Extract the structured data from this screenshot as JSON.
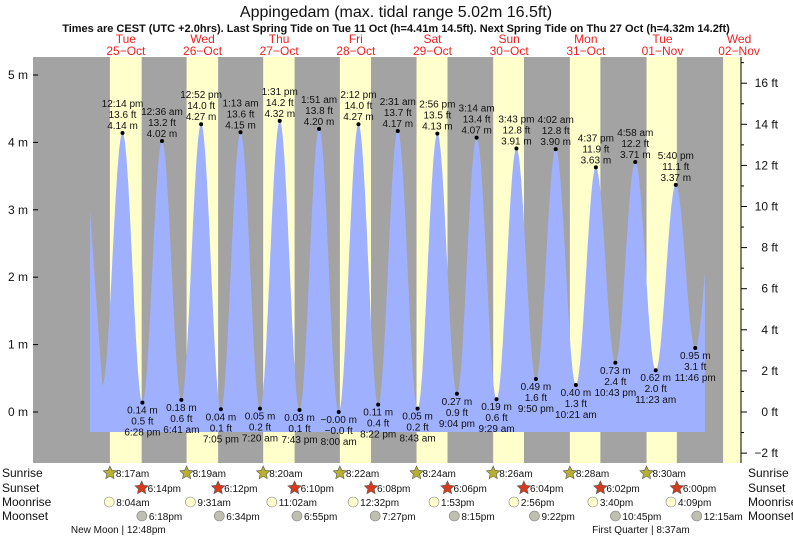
{
  "title": "Appingedam (max. tidal range 5.02m 16.5ft)",
  "subtitle": "Times are CEST (UTC +2.0hrs). Last Spring Tide on Tue 11 Oct (h=4.41m 14.5ft). Next Spring Tide on Thu 27 Oct (h=4.32m 14.2ft)",
  "colors": {
    "night": "#a3a3a3",
    "day": "#ffffcc",
    "water": "#9fb0ff",
    "day_label": "#ee2222",
    "sunrise": "#b8b030",
    "sunset": "#d83a1c",
    "moonrise": "#ffffcc",
    "moonset": "#c0c0b0"
  },
  "chart_data": {
    "type": "area",
    "x_unit": "hours from 25-Oct 00:00 CEST",
    "ylabel_left": "m",
    "ylabel_right": "ft",
    "ylim_m": [
      -0.8,
      5.3
    ],
    "left_ticks": [
      "0 m",
      "1 m",
      "2 m",
      "3 m",
      "4 m",
      "5 m"
    ],
    "right_ticks": [
      "−2 ft",
      "0 ft",
      "2 ft",
      "4 ft",
      "6 ft",
      "8 ft",
      "10 ft",
      "12 ft",
      "14 ft",
      "16 ft"
    ],
    "days": [
      {
        "dow": "Tue",
        "date": "25−Oct",
        "sunrise": "8:17am",
        "sunset": "6:14pm",
        "sr_h": 8.28,
        "ss_h": 18.23,
        "moonrise": "8:04am",
        "mr_h": 8.07,
        "moonset": "6:18pm",
        "ms_h": 18.3
      },
      {
        "dow": "Wed",
        "date": "26−Oct",
        "sunrise": "8:19am",
        "sunset": "6:12pm",
        "sr_h": 32.32,
        "ss_h": 42.2,
        "moonrise": "9:31am",
        "mr_h": 33.52,
        "moonset": "6:34pm",
        "ms_h": 42.57
      },
      {
        "dow": "Thu",
        "date": "27−Oct",
        "sunrise": "8:20am",
        "sunset": "6:10pm",
        "sr_h": 56.33,
        "ss_h": 66.17,
        "moonrise": "11:02am",
        "mr_h": 59.03,
        "moonset": "6:55pm",
        "ms_h": 66.92
      },
      {
        "dow": "Fri",
        "date": "28−Oct",
        "sunrise": "8:22am",
        "sunset": "6:08pm",
        "sr_h": 80.37,
        "ss_h": 90.13,
        "moonrise": "12:32pm",
        "mr_h": 84.53,
        "moonset": "7:27pm",
        "ms_h": 91.45
      },
      {
        "dow": "Sat",
        "date": "29−Oct",
        "sunrise": "8:24am",
        "sunset": "6:06pm",
        "sr_h": 104.4,
        "ss_h": 114.1,
        "moonrise": "1:53pm",
        "mr_h": 109.88,
        "moonset": "8:15pm",
        "ms_h": 116.25
      },
      {
        "dow": "Sun",
        "date": "30−Oct",
        "sunrise": "8:26am",
        "sunset": "6:04pm",
        "sr_h": 128.43,
        "ss_h": 138.07,
        "moonrise": "2:56pm",
        "mr_h": 134.93,
        "moonset": "9:22pm",
        "ms_h": 141.37
      },
      {
        "dow": "Mon",
        "date": "31−Oct",
        "sunrise": "8:28am",
        "sunset": "6:02pm",
        "sr_h": 152.47,
        "ss_h": 162.03,
        "moonrise": "3:40pm",
        "mr_h": 159.67,
        "moonset": "10:45pm",
        "ms_h": 166.75
      },
      {
        "dow": "Tue",
        "date": "01−Nov",
        "sunrise": "8:30am",
        "sunset": "6:00pm",
        "sr_h": 176.5,
        "ss_h": 186.0,
        "moonrise": "4:09pm",
        "mr_h": 184.15,
        "moonset": "12:15am",
        "ms_h": 192.25
      },
      {
        "dow": "Wed",
        "date": "02−Nov",
        "sr_h": 200.5
      }
    ],
    "row_labels": [
      "Sunrise",
      "Sunset",
      "Moonrise",
      "Moonset"
    ],
    "moon_phases": [
      {
        "text": "New Moon | 12:48pm",
        "h": 12.8
      },
      {
        "text": "First Quarter | 8:37am",
        "h": 176.62
      }
    ],
    "curve_start": {
      "h": 2,
      "m": 3.0
    },
    "curve_end": {
      "h": 194.8
    },
    "virtual_extremes": [
      {
        "h": 5.9,
        "m": 0.4
      },
      {
        "h": 198,
        "m": 3.3
      }
    ],
    "extremes": [
      {
        "type": "H",
        "time": "12:14 pm",
        "ft": "13.6 ft",
        "mm": "4.14 m",
        "h": 12.23,
        "m": 4.14
      },
      {
        "type": "L",
        "time": "6:28 pm",
        "ft": "0.5 ft",
        "mm": "0.14 m",
        "h": 18.47,
        "m": 0.14
      },
      {
        "type": "H",
        "time": "12:36 am",
        "ft": "13.2 ft",
        "mm": "4.02 m",
        "h": 24.6,
        "m": 4.02
      },
      {
        "type": "L",
        "time": "6:41 am",
        "ft": "0.6 ft",
        "mm": "0.18 m",
        "h": 30.68,
        "m": 0.18
      },
      {
        "type": "H",
        "time": "12:52 pm",
        "ft": "14.0 ft",
        "mm": "4.27 m",
        "h": 36.87,
        "m": 4.27
      },
      {
        "type": "L",
        "time": "7:05 pm",
        "ft": "0.1 ft",
        "mm": "0.04 m",
        "h": 43.08,
        "m": 0.04
      },
      {
        "type": "H",
        "time": "1:13 am",
        "ft": "13.6 ft",
        "mm": "4.15 m",
        "h": 49.22,
        "m": 4.15
      },
      {
        "type": "L",
        "time": "7:20 am",
        "ft": "0.2 ft",
        "mm": "0.05 m",
        "h": 55.33,
        "m": 0.05
      },
      {
        "type": "H",
        "time": "1:31 pm",
        "ft": "14.2 ft",
        "mm": "4.32 m",
        "h": 61.52,
        "m": 4.32
      },
      {
        "type": "L",
        "time": "7:43 pm",
        "ft": "0.1 ft",
        "mm": "0.03 m",
        "h": 67.72,
        "m": 0.03
      },
      {
        "type": "H",
        "time": "1:51 am",
        "ft": "13.8 ft",
        "mm": "4.20 m",
        "h": 73.85,
        "m": 4.2
      },
      {
        "type": "L",
        "time": "8:00 am",
        "ft": "−0.0 ft",
        "mm": "−0.00 m",
        "h": 80.0,
        "m": 0.0
      },
      {
        "type": "H",
        "time": "2:12 pm",
        "ft": "14.0 ft",
        "mm": "4.27 m",
        "h": 86.2,
        "m": 4.27
      },
      {
        "type": "L",
        "time": "8:22 pm",
        "ft": "0.4 ft",
        "mm": "0.11 m",
        "h": 92.37,
        "m": 0.11
      },
      {
        "type": "H",
        "time": "2:31 am",
        "ft": "13.7 ft",
        "mm": "4.17 m",
        "h": 98.52,
        "m": 4.17
      },
      {
        "type": "L",
        "time": "8:43 am",
        "ft": "0.2 ft",
        "mm": "0.05 m",
        "h": 104.72,
        "m": 0.05
      },
      {
        "type": "H",
        "time": "2:56 pm",
        "ft": "13.5 ft",
        "mm": "4.13 m",
        "h": 110.93,
        "m": 4.13
      },
      {
        "type": "L",
        "time": "9:04 pm",
        "ft": "0.9 ft",
        "mm": "0.27 m",
        "h": 117.07,
        "m": 0.27
      },
      {
        "type": "H",
        "time": "3:14 am",
        "ft": "13.4 ft",
        "mm": "4.07 m",
        "h": 123.23,
        "m": 4.07
      },
      {
        "type": "L",
        "time": "9:29 am",
        "ft": "0.6 ft",
        "mm": "0.19 m",
        "h": 129.48,
        "m": 0.19
      },
      {
        "type": "H",
        "time": "3:43 pm",
        "ft": "12.8 ft",
        "mm": "3.91 m",
        "h": 135.72,
        "m": 3.91
      },
      {
        "type": "L",
        "time": "9:50 pm",
        "ft": "1.6 ft",
        "mm": "0.49 m",
        "h": 141.83,
        "m": 0.49
      },
      {
        "type": "H",
        "time": "4:02 am",
        "ft": "12.8 ft",
        "mm": "3.90 m",
        "h": 148.03,
        "m": 3.9
      },
      {
        "type": "L",
        "time": "10:21 am",
        "ft": "1.3 ft",
        "mm": "0.40 m",
        "h": 154.35,
        "m": 0.4
      },
      {
        "type": "H",
        "time": "4:37 pm",
        "ft": "11.9 ft",
        "mm": "3.63 m",
        "h": 160.62,
        "m": 3.63
      },
      {
        "type": "L",
        "time": "10:43 pm",
        "ft": "2.4 ft",
        "mm": "0.73 m",
        "h": 166.72,
        "m": 0.73
      },
      {
        "type": "H",
        "time": "4:58 am",
        "ft": "12.2 ft",
        "mm": "3.71 m",
        "h": 172.97,
        "m": 3.71
      },
      {
        "type": "L",
        "time": "11:23 am",
        "ft": "2.0 ft",
        "mm": "0.62 m",
        "h": 179.38,
        "m": 0.62
      },
      {
        "type": "H",
        "time": "5:40 pm",
        "ft": "11.1 ft",
        "mm": "3.37 m",
        "h": 185.67,
        "m": 3.37
      },
      {
        "type": "L",
        "time": "11:46 pm",
        "ft": "3.1 ft",
        "mm": "0.95 m",
        "h": 191.77,
        "m": 0.95
      }
    ]
  }
}
